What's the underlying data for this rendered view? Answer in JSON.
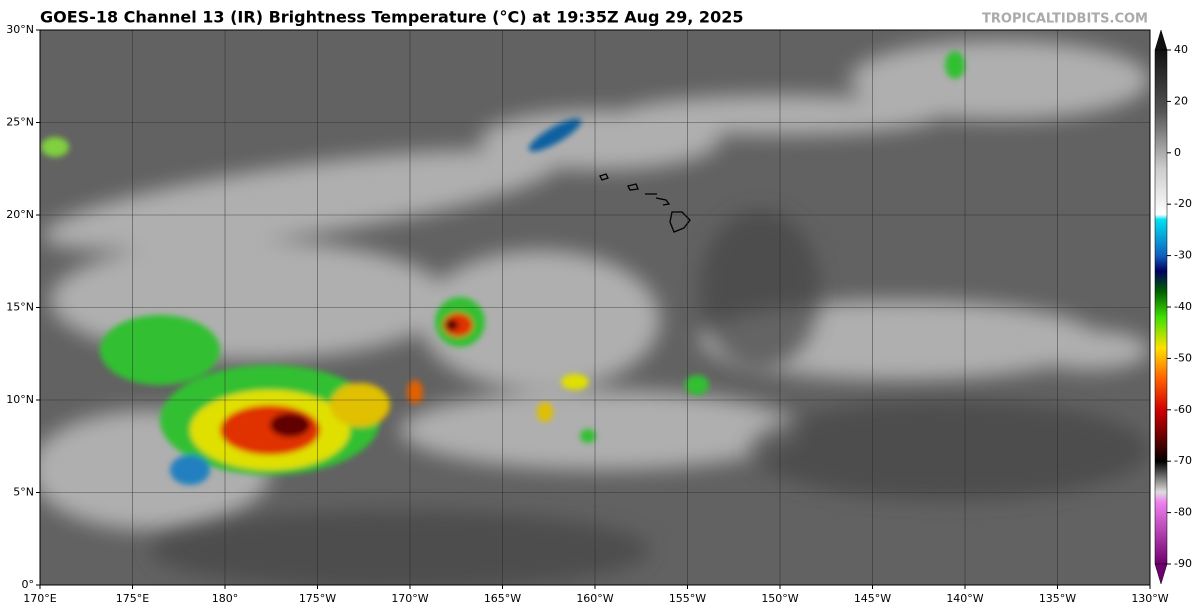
{
  "header": {
    "title": "GOES-18 Channel 13 (IR) Brightness Temperature (°C) at 19:35Z Aug 29, 2025",
    "site": "TROPICALTIDBITS.COM"
  },
  "map": {
    "lat_labels": [
      "30°N",
      "25°N",
      "20°N",
      "15°N",
      "10°N",
      "5°N",
      "0°"
    ],
    "lon_labels": [
      "170°E",
      "175°E",
      "180°",
      "175°W",
      "170°W",
      "165°W",
      "160°W",
      "155°W",
      "150°W",
      "145°W",
      "140°W",
      "135°W",
      "130°W"
    ]
  },
  "colorbar": {
    "ticks": [
      40,
      20,
      0,
      -20,
      -30,
      -40,
      -50,
      -60,
      -70,
      -80,
      -90
    ]
  }
}
